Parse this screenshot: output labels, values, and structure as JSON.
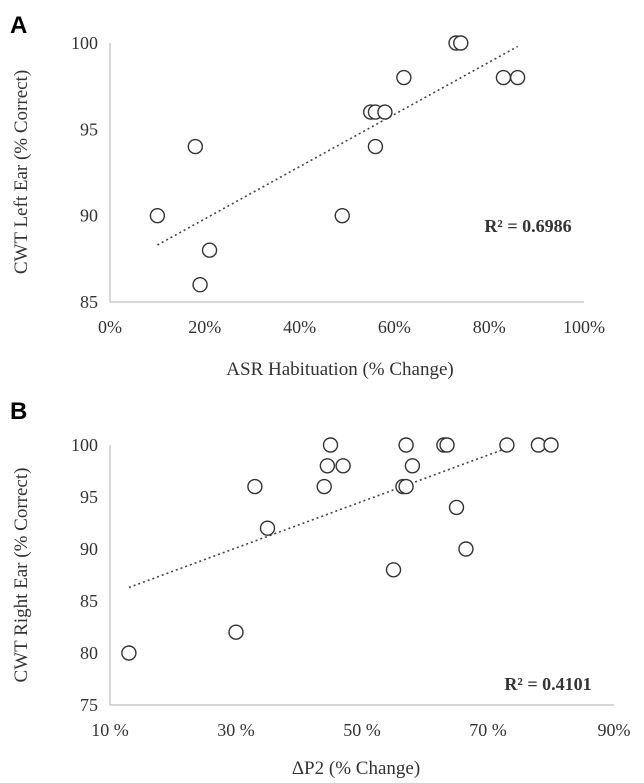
{
  "chart_data": [
    {
      "type": "scatter",
      "panel": "A",
      "xlabel": "ASR Habituation (% Change)",
      "ylabel": "CWT Left Ear (% Correct)",
      "xlim": [
        0,
        100
      ],
      "ylim": [
        85,
        100
      ],
      "xticks": [
        0,
        20,
        40,
        60,
        80,
        100
      ],
      "xtick_labels": [
        "0%",
        "20%",
        "40%",
        "60%",
        "80%",
        "100%"
      ],
      "yticks": [
        85,
        90,
        95,
        100
      ],
      "ytick_labels": [
        "85",
        "90",
        "95",
        "100"
      ],
      "points": [
        {
          "x": 10,
          "y": 90
        },
        {
          "x": 18,
          "y": 94
        },
        {
          "x": 19,
          "y": 86
        },
        {
          "x": 21,
          "y": 88
        },
        {
          "x": 49,
          "y": 90
        },
        {
          "x": 55,
          "y": 96
        },
        {
          "x": 56,
          "y": 96
        },
        {
          "x": 56,
          "y": 94
        },
        {
          "x": 58,
          "y": 96
        },
        {
          "x": 62,
          "y": 98
        },
        {
          "x": 73,
          "y": 100
        },
        {
          "x": 74,
          "y": 100
        },
        {
          "x": 83,
          "y": 98
        },
        {
          "x": 86,
          "y": 98
        }
      ],
      "trendline": {
        "x": [
          10,
          86
        ],
        "y": [
          88.3,
          99.8
        ]
      },
      "r2_label": "R² = 0.6986",
      "grid": false
    },
    {
      "type": "scatter",
      "panel": "B",
      "xlabel": "ΔP2 (% Change)",
      "ylabel": "CWT Right Ear (% Correct)",
      "xlim": [
        10,
        90
      ],
      "ylim": [
        75,
        100
      ],
      "xticks": [
        10,
        30,
        50,
        70,
        90
      ],
      "xtick_labels": [
        "10 %",
        "30 %",
        "50 %",
        "70 %",
        "90%"
      ],
      "yticks": [
        75,
        80,
        85,
        90,
        95,
        100
      ],
      "ytick_labels": [
        "75",
        "80",
        "85",
        "90",
        "95",
        "100"
      ],
      "points": [
        {
          "x": 13,
          "y": 80
        },
        {
          "x": 30,
          "y": 82
        },
        {
          "x": 33,
          "y": 96
        },
        {
          "x": 35,
          "y": 92
        },
        {
          "x": 44,
          "y": 96
        },
        {
          "x": 44.5,
          "y": 98
        },
        {
          "x": 45,
          "y": 100
        },
        {
          "x": 47,
          "y": 98
        },
        {
          "x": 55,
          "y": 88
        },
        {
          "x": 56.5,
          "y": 96
        },
        {
          "x": 57,
          "y": 96
        },
        {
          "x": 57,
          "y": 100
        },
        {
          "x": 58,
          "y": 98
        },
        {
          "x": 63,
          "y": 100
        },
        {
          "x": 63.5,
          "y": 100
        },
        {
          "x": 65,
          "y": 94
        },
        {
          "x": 66.5,
          "y": 90
        },
        {
          "x": 73,
          "y": 100
        },
        {
          "x": 78,
          "y": 100
        },
        {
          "x": 80,
          "y": 100
        }
      ],
      "trendline": {
        "x": [
          13,
          73
        ],
        "y": [
          86.3,
          99.7
        ]
      },
      "r2_label": "R² = 0.4101",
      "grid": false
    }
  ],
  "panels": {
    "a_letter": "A",
    "b_letter": "B"
  }
}
